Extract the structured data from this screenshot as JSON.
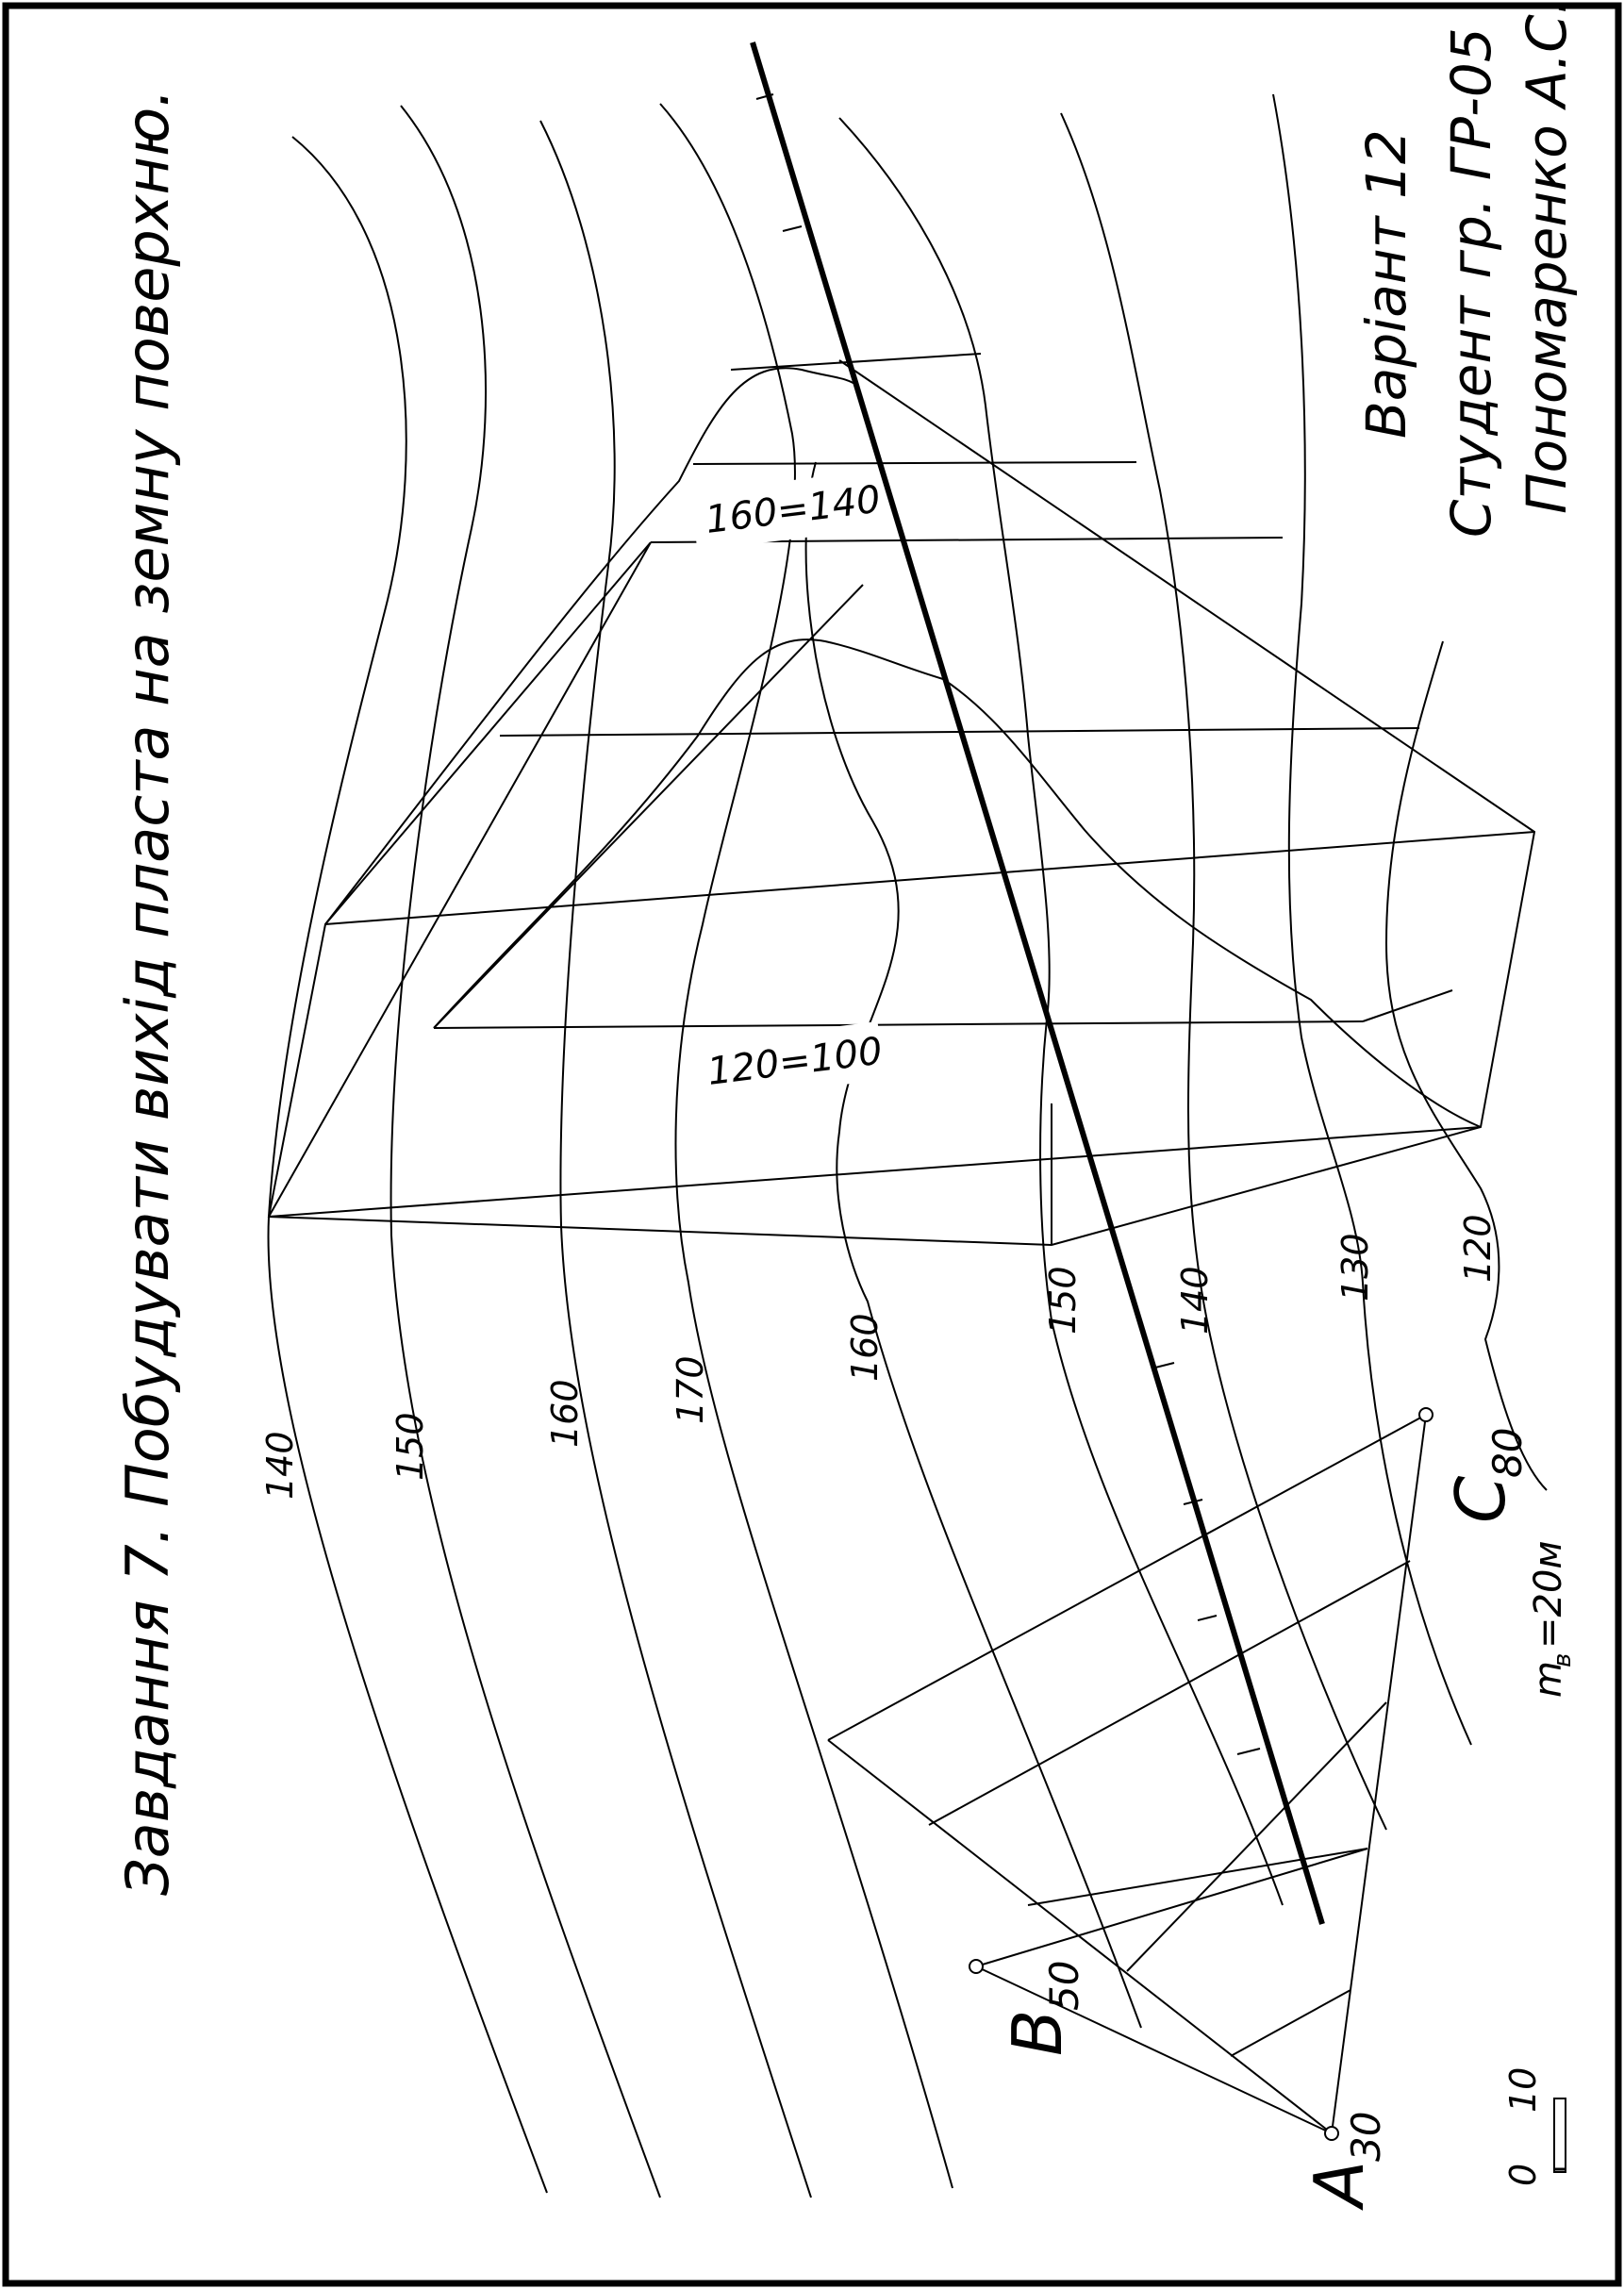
{
  "sheet": {
    "title": "Завдання 7. Побудувати вихід пласта на земну поверхню.",
    "variant": "Варіант 12",
    "student": "Студент гр. ГР-05",
    "author": "Пономаренко А.С."
  },
  "contours": [
    {
      "label": "140"
    },
    {
      "label": "150"
    },
    {
      "label": "160"
    },
    {
      "label": "170"
    },
    {
      "label": "160"
    },
    {
      "label": "150"
    },
    {
      "label": "140"
    },
    {
      "label": "130"
    },
    {
      "label": "120"
    }
  ],
  "strike_labels": {
    "upper": "160=140",
    "lower": "120=100"
  },
  "points": {
    "a": {
      "letter": "A",
      "index": "30"
    },
    "b": {
      "letter": "B",
      "index": "50"
    },
    "c": {
      "letter": "C",
      "index": "80"
    }
  },
  "scale": {
    "zero": "0",
    "ten": "10",
    "vertical_scale": "m",
    "vertical_sub": "в",
    "vertical_value": "=20м"
  }
}
